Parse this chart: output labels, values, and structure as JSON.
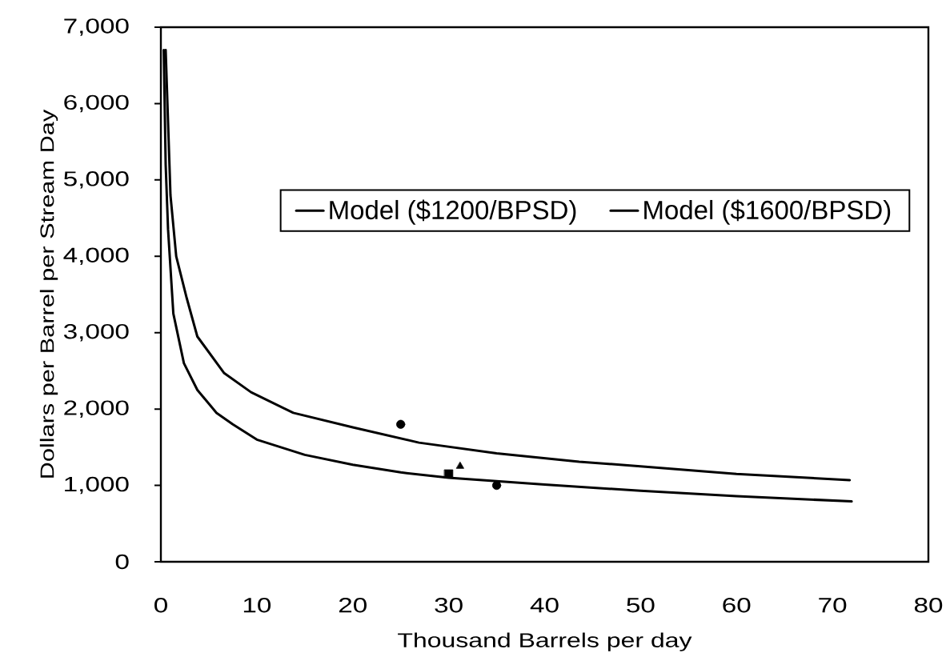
{
  "chart_data": {
    "type": "scatter",
    "xlabel": "Thousand Barrels per day",
    "ylabel": "Dollars per Barrel per Stream Day",
    "xlim": [
      0,
      80
    ],
    "ylim": [
      0,
      7000
    ],
    "xticks": [
      0,
      10,
      20,
      30,
      40,
      50,
      60,
      70,
      80
    ],
    "yticks": [
      0,
      {
        "value": 1000,
        "label": "1,000"
      },
      {
        "value": 2000,
        "label": "2,000"
      },
      {
        "value": 3000,
        "label": "3,000"
      },
      {
        "value": 4000,
        "label": "4,000"
      },
      {
        "value": 5000,
        "label": "5,000"
      },
      {
        "value": 6000,
        "label": "6,000"
      },
      {
        "value": 7000,
        "label": "7,000"
      }
    ],
    "legend": "top",
    "series": [
      {
        "color": "#000000",
        "marker": "square",
        "x": [
          30.0
        ],
        "values": [
          1150
        ]
      },
      {
        "color": "#000000",
        "marker": "triangle",
        "x": [
          31.2
        ],
        "values": [
          1250
        ]
      },
      {
        "color": "#000000",
        "marker": "circle",
        "x": [
          25.0
        ],
        "values": [
          1800
        ]
      },
      {
        "color": "#000000",
        "marker": "circle",
        "x": [
          35.0
        ],
        "values": [
          1000
        ]
      },
      {
        "name": "Model ($1200/BPSD)",
        "type": "line",
        "color": "#000000",
        "marker": "none",
        "line_style": "solid",
        "x": [
          0.3,
          0.5,
          0.75,
          1.3,
          2.4,
          3.8,
          5.8,
          7.5,
          10,
          15,
          20,
          25,
          30,
          40,
          50,
          60,
          72
        ],
        "values": [
          6700,
          5200,
          4350,
          3250,
          2600,
          2250,
          1950,
          1800,
          1600,
          1400,
          1270,
          1170,
          1100,
          1010,
          930,
          860,
          790
        ]
      },
      {
        "name": "Model ($1600/BPSD)",
        "type": "line",
        "color": "#000000",
        "marker": "none",
        "line_style": "solid",
        "x": [
          0.5,
          1.0,
          1.6,
          2.7,
          3.8,
          6.6,
          9.4,
          13.8,
          20,
          26.9,
          35,
          43.6,
          50,
          60,
          71.8
        ],
        "values": [
          6700,
          4800,
          4000,
          3450,
          2950,
          2470,
          2220,
          1950,
          1760,
          1560,
          1420,
          1310,
          1250,
          1150,
          1070
        ]
      }
    ]
  }
}
